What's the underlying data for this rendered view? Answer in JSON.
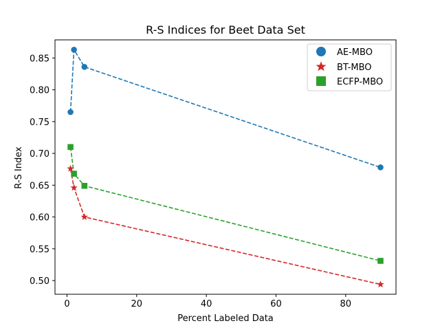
{
  "chart_data": {
    "type": "line",
    "title": "R-S Indices for Beet Data Set",
    "xlabel": "Percent Labeled Data",
    "ylabel": "R-S Index",
    "xlim": [
      -3.45,
      94.45
    ],
    "ylim": [
      0.4785,
      0.8785
    ],
    "xticks": [
      0,
      20,
      40,
      60,
      80
    ],
    "yticks": [
      0.5,
      0.55,
      0.6,
      0.65,
      0.7,
      0.75,
      0.8,
      0.85
    ],
    "xtick_labels": [
      "0",
      "20",
      "40",
      "60",
      "80"
    ],
    "ytick_labels": [
      "0.50",
      "0.55",
      "0.60",
      "0.65",
      "0.70",
      "0.75",
      "0.80",
      "0.85"
    ],
    "grid": false,
    "legend_position": "top-right",
    "series": [
      {
        "name": "AE-MBO",
        "marker": "circle",
        "color": "#1f77b4",
        "linestyle": "dashed",
        "x": [
          1,
          2,
          5,
          90
        ],
        "y": [
          0.765,
          0.863,
          0.836,
          0.678
        ]
      },
      {
        "name": "BT-MBO",
        "marker": "star",
        "color": "#d62728",
        "linestyle": "dashed",
        "x": [
          1,
          2,
          5,
          90
        ],
        "y": [
          0.676,
          0.646,
          0.6,
          0.494
        ]
      },
      {
        "name": "ECFP-MBO",
        "marker": "square",
        "color": "#2ca02c",
        "linestyle": "dashed",
        "x": [
          1,
          2,
          5,
          90
        ],
        "y": [
          0.71,
          0.668,
          0.649,
          0.531
        ]
      }
    ]
  }
}
